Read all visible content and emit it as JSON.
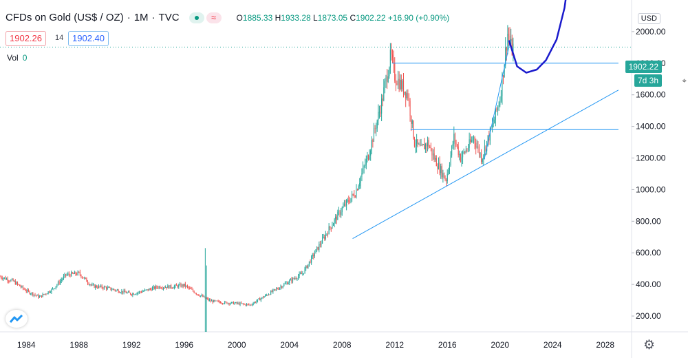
{
  "header": {
    "symbol": "CFDs on Gold (US$ / OZ)",
    "interval": "1M",
    "source": "TVC",
    "open_label": "O",
    "open": "1885.33",
    "high_label": "H",
    "high": "1933.28",
    "low_label": "L",
    "low": "1873.05",
    "close_label": "C",
    "close": "1902.22",
    "change": "+16.90 (+0.90%)"
  },
  "quote": {
    "bid": "1902.26",
    "spread": "14",
    "ask": "1902.40"
  },
  "volume": {
    "label": "Vol",
    "value": "0"
  },
  "currency_button": "USD",
  "price_axis_tag": "1902.22",
  "countdown_tag": "7d 3h",
  "colors": {
    "up": "#26a69a",
    "down": "#ef5350",
    "drawing": "#2196f3",
    "freehand": "#1a1acc",
    "last_price": "#26a69a",
    "grid": "#e0e3eb"
  },
  "icons": [
    "tradingview-logo-icon",
    "settings-gear-icon",
    "cursor-icon"
  ],
  "chart_data": {
    "type": "candlestick",
    "title": "CFDs on Gold (US$ / OZ)",
    "interval": "1M",
    "xlabel": "",
    "ylabel": "",
    "x_ticks": [
      "1984",
      "1988",
      "1992",
      "1996",
      "2000",
      "2004",
      "2008",
      "2012",
      "2016",
      "2020",
      "2024",
      "2028"
    ],
    "y_ticks": [
      "200.00",
      "400.00",
      "600.00",
      "800.00",
      "1000.00",
      "1200.00",
      "1400.00",
      "1600.00",
      "1800.00",
      "2000.00"
    ],
    "xlim": [
      1982.0,
      2030.0
    ],
    "ylim": [
      100,
      2200
    ],
    "last_price": 1902.22,
    "series": [
      {
        "name": "price",
        "points": [
          [
            1982.0,
            450
          ],
          [
            1983.0,
            420
          ],
          [
            1984.0,
            360
          ],
          [
            1985.0,
            320
          ],
          [
            1986.0,
            370
          ],
          [
            1987.0,
            460
          ],
          [
            1988.0,
            470
          ],
          [
            1989.0,
            390
          ],
          [
            1990.0,
            380
          ],
          [
            1991.0,
            360
          ],
          [
            1992.0,
            340
          ],
          [
            1993.0,
            360
          ],
          [
            1994.0,
            385
          ],
          [
            1995.0,
            385
          ],
          [
            1996.0,
            395
          ],
          [
            1997.0,
            340
          ],
          [
            1998.0,
            295
          ],
          [
            1999.0,
            285
          ],
          [
            2000.0,
            280
          ],
          [
            2001.0,
            270
          ],
          [
            2002.0,
            320
          ],
          [
            2003.0,
            370
          ],
          [
            2004.0,
            420
          ],
          [
            2005.0,
            470
          ],
          [
            2006.0,
            610
          ],
          [
            2007.0,
            750
          ],
          [
            2008.0,
            880
          ],
          [
            2009.0,
            980
          ],
          [
            2010.0,
            1220
          ],
          [
            2011.0,
            1550
          ],
          [
            2011.7,
            1850
          ],
          [
            2012.0,
            1720
          ],
          [
            2012.5,
            1660
          ],
          [
            2013.0,
            1600
          ],
          [
            2013.5,
            1300
          ],
          [
            2014.0,
            1250
          ],
          [
            2014.5,
            1300
          ],
          [
            2015.0,
            1200
          ],
          [
            2015.9,
            1060
          ],
          [
            2016.5,
            1330
          ],
          [
            2017.0,
            1200
          ],
          [
            2017.5,
            1260
          ],
          [
            2018.0,
            1330
          ],
          [
            2018.6,
            1200
          ],
          [
            2019.0,
            1300
          ],
          [
            2019.5,
            1420
          ],
          [
            2020.0,
            1580
          ],
          [
            2020.6,
            2000
          ],
          [
            2020.9,
            1880
          ],
          [
            2021.0,
            1902
          ]
        ]
      }
    ],
    "volume_spikes": [
      [
        1997.6,
        630
      ],
      [
        1997.7,
        520
      ]
    ],
    "drawings": [
      {
        "type": "horizontal-line",
        "y": 1800,
        "x_from": 2011.8,
        "x_to": 2029.0
      },
      {
        "type": "horizontal-line",
        "y": 1380,
        "x_from": 2013.2,
        "x_to": 2029.0
      },
      {
        "type": "trend-line",
        "from": [
          2008.8,
          690
        ],
        "to": [
          2029.0,
          1630
        ]
      },
      {
        "type": "trend-line",
        "from": [
          2018.8,
          1190
        ],
        "to": [
          2020.8,
          1950
        ]
      },
      {
        "type": "freehand",
        "points": [
          [
            2020.7,
            1940
          ],
          [
            2021.0,
            1860
          ],
          [
            2021.3,
            1780
          ],
          [
            2022.0,
            1740
          ],
          [
            2022.8,
            1760
          ],
          [
            2023.5,
            1820
          ],
          [
            2024.3,
            1950
          ],
          [
            2024.9,
            2150
          ],
          [
            2025.4,
            2450
          ]
        ]
      }
    ]
  }
}
